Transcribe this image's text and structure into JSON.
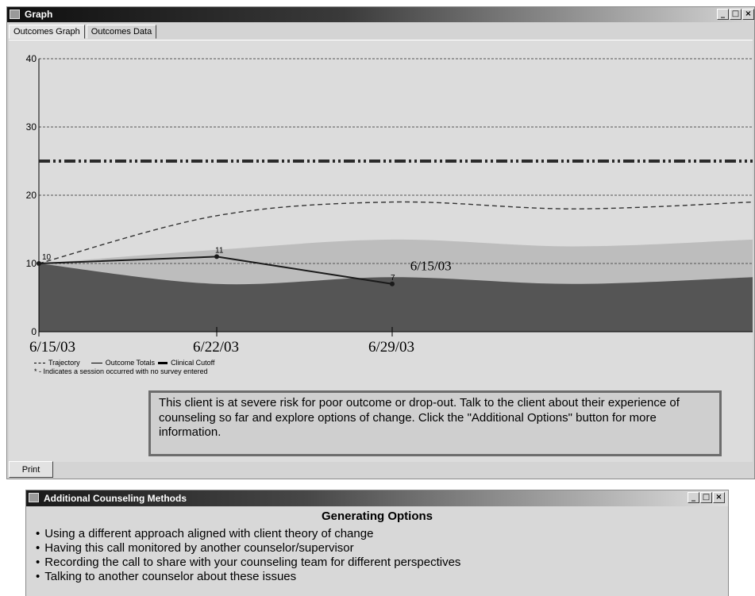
{
  "graph_window": {
    "title": "Graph",
    "controls": {
      "minimize": "_",
      "maximize": "□",
      "close": "×"
    },
    "tabs": [
      {
        "label": "Outcomes Graph",
        "active": true
      },
      {
        "label": "Outcomes Data",
        "active": false
      }
    ],
    "message": "This client is at severe risk for poor outcome or drop-out.  Talk to the client about their experience of counseling so far and explore options of change. Click the \"Additional Options\" button for more information.",
    "print_label": "Print"
  },
  "chart_data": {
    "type": "line",
    "y_range": [
      0,
      40
    ],
    "y_ticks": [
      "0",
      "10",
      "20",
      "30",
      "40"
    ],
    "x_tick_labels": [
      "6/15/03",
      "6/22/03",
      "6/29/03"
    ],
    "x_positions": [
      0,
      1,
      2
    ],
    "x_range": [
      0,
      4
    ],
    "series": [
      {
        "name": "Trajectory",
        "style": "dashed",
        "points": [
          [
            0,
            10
          ],
          [
            1,
            17
          ],
          [
            2,
            19
          ],
          [
            3,
            18
          ],
          [
            4,
            19
          ]
        ]
      },
      {
        "name": "Outcome Totals",
        "style": "solid",
        "points": [
          [
            0,
            10
          ],
          [
            1,
            11
          ],
          [
            2,
            7
          ]
        ],
        "point_labels": [
          "10",
          "11",
          "7"
        ]
      },
      {
        "name": "Clinical Cutoff",
        "style": "dash-dot",
        "value": 25
      }
    ],
    "bands": {
      "upper": [
        [
          0,
          10
        ],
        [
          1,
          12
        ],
        [
          2,
          13.5
        ],
        [
          3,
          12.5
        ],
        [
          4,
          13.5
        ]
      ],
      "lower": [
        [
          0,
          10
        ],
        [
          1,
          7
        ],
        [
          2,
          8
        ],
        [
          3,
          7
        ],
        [
          4,
          8
        ]
      ]
    },
    "annotation": {
      "text": "6/15/03",
      "x": 2.1,
      "y": 9
    },
    "legend_note": "* - Indicates a session occurred with no survey entered",
    "colors": {
      "band_light": "#bdbdbd",
      "band_dark": "#555555",
      "cutoff": "#2a2a2a"
    }
  },
  "methods_window": {
    "title": "Additional Counseling Methods",
    "controls": {
      "minimize": "_",
      "maximize": "□",
      "close": "×"
    },
    "heading": "Generating Options",
    "items": [
      "Using a different approach aligned with client theory of change",
      "Having this call monitored by another counselor/supervisor",
      "Recording the call to share with your counseling team for different perspectives",
      "Talking to another counselor about these issues"
    ]
  }
}
